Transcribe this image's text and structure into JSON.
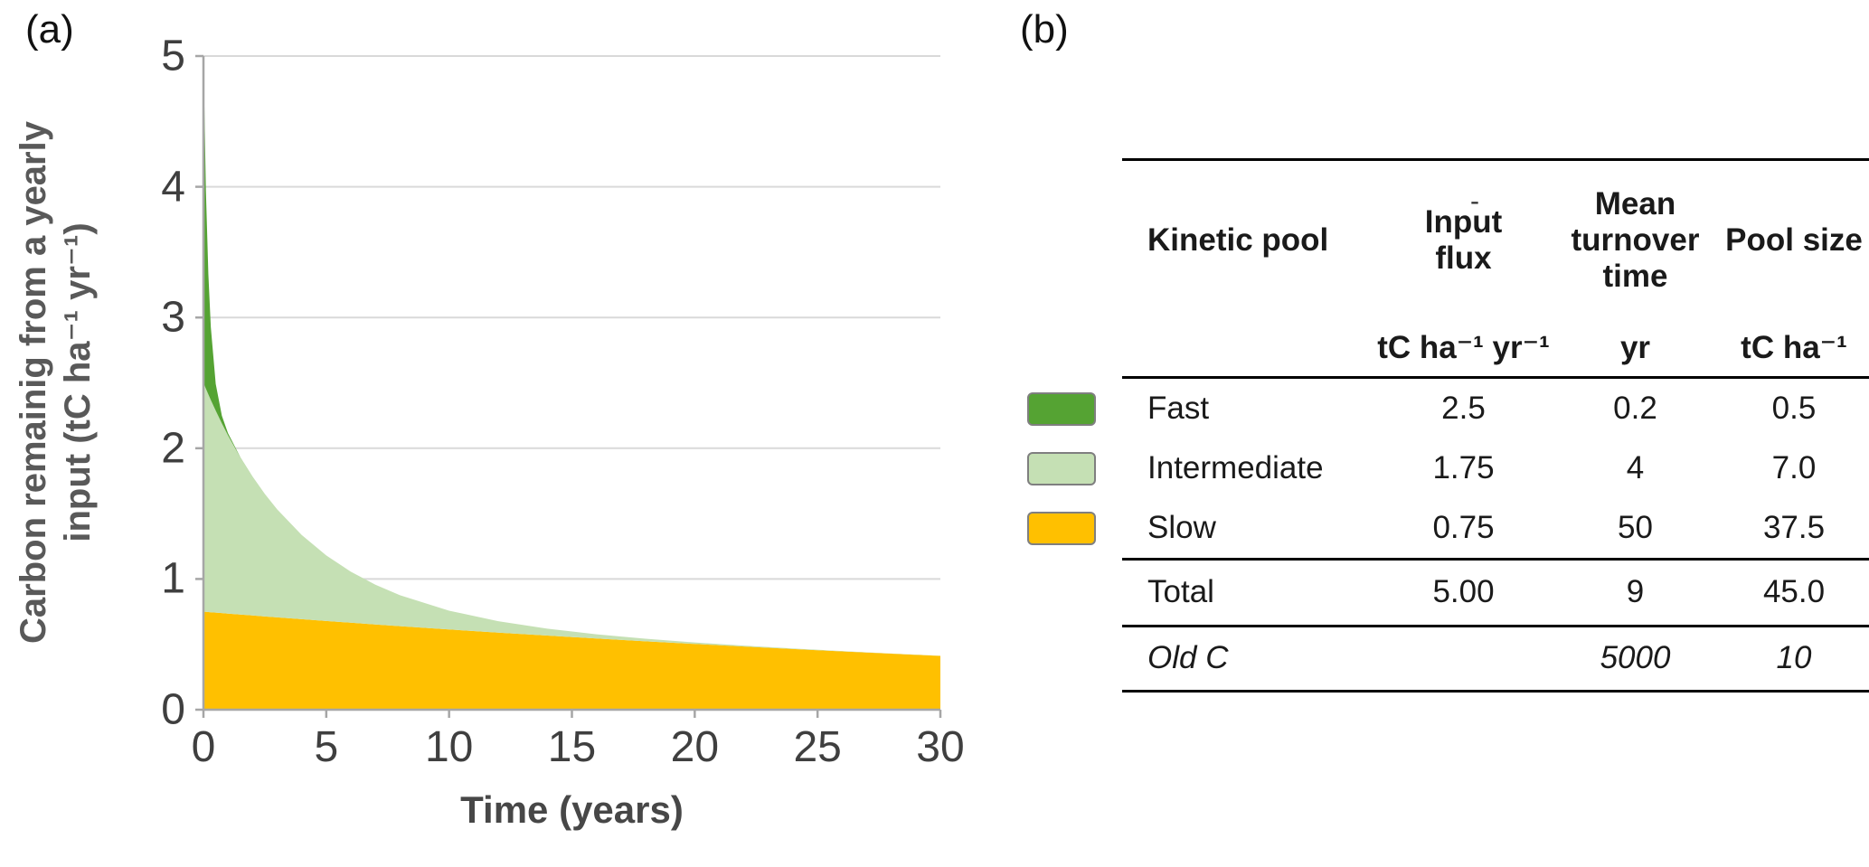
{
  "panel_a": {
    "label": "(a)"
  },
  "panel_b": {
    "label": "(b)"
  },
  "stray_mark": "-",
  "chart_data": {
    "type": "area",
    "stacked": true,
    "xlabel": "Time (years)",
    "ylabel": "Carbon remainig from a yearly\ninput  (tC ha⁻¹ yr⁻¹)",
    "xlim": [
      0,
      30
    ],
    "ylim": [
      0,
      5
    ],
    "xticks": [
      0,
      5,
      10,
      15,
      20,
      25,
      30
    ],
    "yticks": [
      0,
      1,
      2,
      3,
      4,
      5
    ],
    "grid": "horizontal",
    "x": [
      0,
      0.1,
      0.2,
      0.3,
      0.5,
      0.75,
      1,
      1.5,
      2,
      2.5,
      3,
      4,
      5,
      6,
      7,
      8,
      10,
      12,
      14,
      16,
      18,
      20,
      22,
      24,
      26,
      28,
      30
    ],
    "series": [
      {
        "name": "Slow",
        "color": "#FFC000",
        "values": [
          0.75,
          0.7485,
          0.747,
          0.7455,
          0.7425,
          0.7388,
          0.7351,
          0.7278,
          0.7206,
          0.7135,
          0.7063,
          0.6923,
          0.6786,
          0.6652,
          0.652,
          0.6391,
          0.614,
          0.59,
          0.5668,
          0.5446,
          0.5233,
          0.5027,
          0.483,
          0.4641,
          0.4459,
          0.4284,
          0.4116
        ]
      },
      {
        "name": "Intermediate",
        "color": "#C5E0B4",
        "values": [
          1.75,
          1.7068,
          1.6646,
          1.6235,
          1.5444,
          1.4507,
          1.3629,
          1.2028,
          1.0614,
          0.9368,
          0.8266,
          0.6438,
          0.5014,
          0.3904,
          0.3041,
          0.2368,
          0.1437,
          0.0871,
          0.0528,
          0.032,
          0.0194,
          0.0118,
          0.0071,
          0.0043,
          0.0026,
          0.0016,
          0.001
        ]
      },
      {
        "name": "Fast",
        "color": "#55A333",
        "values": [
          2.5,
          1.5163,
          0.9197,
          0.5578,
          0.2052,
          0.0588,
          0.0168,
          0.0014,
          0.0001,
          0,
          0,
          0,
          0,
          0,
          0,
          0,
          0,
          0,
          0,
          0,
          0,
          0,
          0,
          0,
          0,
          0,
          0
        ]
      }
    ]
  },
  "table": {
    "columns": [
      "Kinetic pool",
      "Input\nflux",
      "Mean\nturnover\ntime",
      "Pool size"
    ],
    "units": [
      "",
      "tC ha⁻¹ yr⁻¹",
      "yr",
      "tC ha⁻¹"
    ],
    "rows": [
      {
        "pool": "Fast",
        "flux": "2.5",
        "turnover": "0.2",
        "size": "0.5",
        "swatch": "#55A333"
      },
      {
        "pool": "Intermediate",
        "flux": "1.75",
        "turnover": "4",
        "size": "7.0",
        "swatch": "#C5E0B4"
      },
      {
        "pool": "Slow",
        "flux": "0.75",
        "turnover": "50",
        "size": "37.5",
        "swatch": "#FFC000"
      }
    ],
    "total": {
      "pool": "Total",
      "flux": "5.00",
      "turnover": "9",
      "size": "45.0"
    },
    "old_c": {
      "pool": "Old C",
      "flux": "",
      "turnover": "5000",
      "size": "10"
    }
  }
}
